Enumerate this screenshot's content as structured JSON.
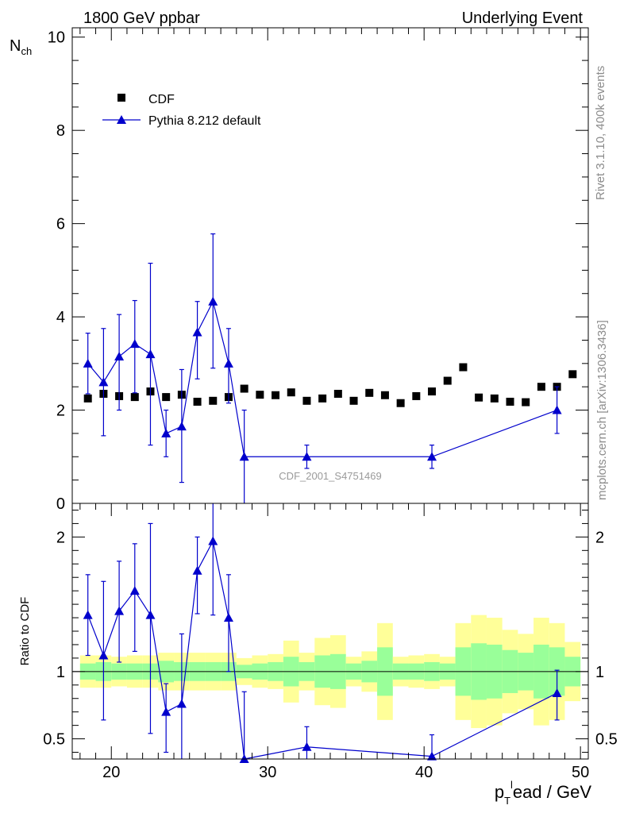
{
  "header": {
    "left": "1800 GeV ppbar",
    "right": "Underlying Event"
  },
  "side_labels": {
    "rivet": "Rivet 3.1.10,  400k events",
    "mcplots": "mcplots.cern.ch [arXiv:1306.3436]"
  },
  "watermark": "CDF_2001_S4751469",
  "axes": {
    "ylabel_main": "N",
    "ylabel_main_sub": "ch",
    "ylabel_ratio": "Ratio to CDF",
    "xlabel_p": "p",
    "xlabel_sub": "T",
    "xlabel_sup": "l",
    "xlabel_rest": "ead / GeV"
  },
  "legend": {
    "cdf": "CDF",
    "pythia": "Pythia 8.212 default"
  },
  "colors": {
    "mc": "#0000cc",
    "data": "#000000",
    "band_yellow": "#ffff99",
    "band_green": "#99ff99"
  },
  "chart_data": [
    {
      "type": "scatter",
      "title": "1800 GeV ppbar — Underlying Event",
      "xlabel": "p_T^lead / GeV",
      "ylabel": "N_ch",
      "xlim": [
        17.5,
        50.5
      ],
      "ylim": [
        0,
        10.2
      ],
      "yticks": [
        0,
        2,
        4,
        6,
        8,
        10
      ],
      "xticks": [
        20,
        30,
        40,
        50
      ],
      "series": [
        {
          "name": "CDF",
          "marker": "square",
          "x": [
            18.5,
            19.5,
            20.5,
            21.5,
            22.5,
            23.5,
            24.5,
            25.5,
            26.5,
            27.5,
            28.5,
            29.5,
            30.5,
            31.5,
            32.5,
            33.5,
            34.5,
            35.5,
            36.5,
            37.5,
            38.5,
            39.5,
            40.5,
            41.5,
            42.5,
            43.5,
            44.5,
            45.5,
            46.5,
            47.5,
            48.5,
            49.5
          ],
          "y": [
            2.25,
            2.35,
            2.3,
            2.28,
            2.4,
            2.28,
            2.33,
            2.18,
            2.2,
            2.28,
            2.46,
            2.33,
            2.32,
            2.38,
            2.2,
            2.25,
            2.35,
            2.2,
            2.37,
            2.32,
            2.15,
            2.3,
            2.4,
            2.63,
            2.92,
            2.27,
            2.25,
            2.18,
            2.17,
            2.5,
            2.5,
            2.77
          ]
        },
        {
          "name": "Pythia 8.212 default",
          "marker": "triangle",
          "x": [
            18.5,
            19.5,
            20.5,
            21.5,
            22.5,
            23.5,
            24.5,
            25.5,
            26.5,
            27.5,
            28.5,
            32.5,
            40.5,
            48.5
          ],
          "y": [
            3.0,
            2.6,
            3.15,
            3.42,
            3.2,
            1.5,
            1.65,
            3.67,
            4.33,
            3.0,
            1.0,
            1.0,
            1.0,
            2.0
          ],
          "yerr_low": [
            0.65,
            1.15,
            1.15,
            1.05,
            1.95,
            0.5,
            1.2,
            1.0,
            1.43,
            0.85,
            1.0,
            0.25,
            0.25,
            0.5
          ],
          "yerr_high": [
            0.65,
            1.15,
            0.9,
            0.93,
            1.95,
            0.5,
            1.22,
            0.66,
            1.45,
            0.75,
            1.0,
            0.25,
            0.25,
            0.5
          ]
        }
      ]
    },
    {
      "type": "scatter",
      "title": "Ratio to CDF",
      "xlabel": "p_T^lead / GeV",
      "ylabel": "Ratio to CDF",
      "xlim": [
        17.5,
        50.5
      ],
      "ylim": [
        0.35,
        2.25
      ],
      "yticks": [
        0.5,
        1,
        2
      ],
      "reference_line": 1,
      "bands": {
        "x_low": [
          18,
          19,
          20,
          21,
          22,
          23,
          24,
          25,
          26,
          27,
          28,
          29,
          30,
          31,
          32,
          33,
          34,
          35,
          36,
          37,
          38,
          39,
          40,
          41,
          42,
          43,
          44,
          45,
          46,
          47,
          48,
          49
        ],
        "x_high": [
          19,
          20,
          21,
          22,
          23,
          24,
          25,
          26,
          27,
          28,
          29,
          30,
          31,
          32,
          33,
          34,
          35,
          36,
          37,
          38,
          39,
          40,
          41,
          42,
          43,
          44,
          45,
          46,
          47,
          48,
          49,
          50
        ],
        "yellow_low": [
          0.88,
          0.88,
          0.89,
          0.88,
          0.88,
          0.86,
          0.86,
          0.86,
          0.86,
          0.86,
          0.9,
          0.88,
          0.87,
          0.77,
          0.86,
          0.75,
          0.73,
          0.89,
          0.85,
          0.64,
          0.89,
          0.88,
          0.87,
          0.89,
          0.64,
          0.58,
          0.6,
          0.69,
          0.72,
          0.6,
          0.64,
          0.78
        ],
        "yellow_high": [
          1.12,
          1.12,
          1.11,
          1.12,
          1.12,
          1.14,
          1.14,
          1.14,
          1.14,
          1.14,
          1.1,
          1.12,
          1.13,
          1.23,
          1.14,
          1.25,
          1.27,
          1.11,
          1.15,
          1.36,
          1.11,
          1.12,
          1.13,
          1.11,
          1.36,
          1.42,
          1.4,
          1.31,
          1.28,
          1.4,
          1.36,
          1.22
        ],
        "green_low": [
          0.94,
          0.93,
          0.94,
          0.94,
          0.94,
          0.92,
          0.93,
          0.93,
          0.93,
          0.93,
          0.95,
          0.94,
          0.93,
          0.89,
          0.93,
          0.88,
          0.87,
          0.94,
          0.92,
          0.82,
          0.94,
          0.94,
          0.93,
          0.94,
          0.82,
          0.79,
          0.8,
          0.84,
          0.86,
          0.8,
          0.82,
          0.89
        ],
        "green_high": [
          1.06,
          1.07,
          1.06,
          1.06,
          1.06,
          1.08,
          1.07,
          1.07,
          1.07,
          1.07,
          1.05,
          1.06,
          1.07,
          1.11,
          1.07,
          1.12,
          1.13,
          1.06,
          1.08,
          1.18,
          1.06,
          1.06,
          1.07,
          1.06,
          1.18,
          1.21,
          1.2,
          1.16,
          1.14,
          1.2,
          1.18,
          1.11
        ]
      },
      "series": [
        {
          "name": "Pythia 8.212 default / CDF",
          "marker": "triangle",
          "x": [
            18.5,
            19.5,
            20.5,
            21.5,
            22.5,
            23.5,
            24.5,
            25.5,
            26.5,
            27.5,
            28.5,
            32.5,
            40.5,
            48.5
          ],
          "y": [
            1.42,
            1.12,
            1.45,
            1.6,
            1.42,
            0.7,
            0.76,
            1.75,
            1.97,
            1.4,
            0.35,
            0.44,
            0.37,
            0.84
          ],
          "yerr_low": [
            0.3,
            0.48,
            0.38,
            0.45,
            0.88,
            0.3,
            0.52,
            0.32,
            0.55,
            0.4,
            0.35,
            0.1,
            0.12,
            0.2
          ],
          "yerr_high": [
            0.3,
            0.55,
            0.37,
            0.35,
            0.68,
            0.21,
            0.52,
            0.25,
            0.55,
            0.32,
            0.5,
            0.15,
            0.16,
            0.17
          ]
        }
      ]
    }
  ]
}
